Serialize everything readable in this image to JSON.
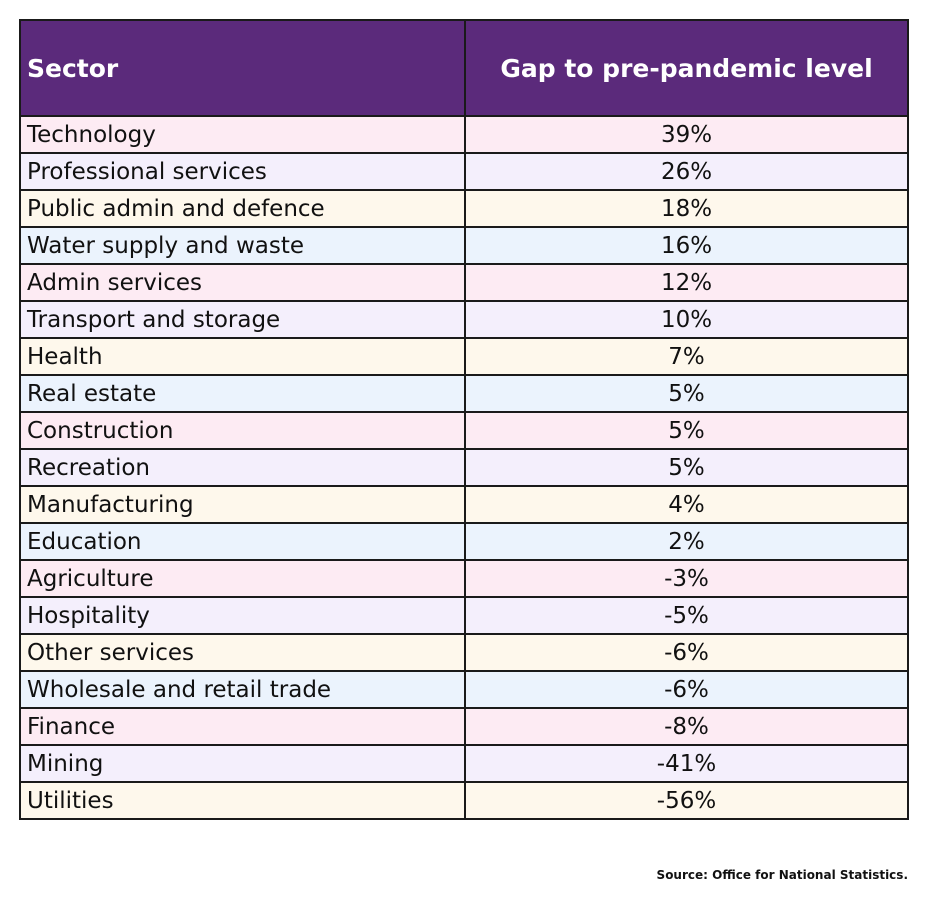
{
  "chart_data": {
    "type": "table",
    "columns": [
      "Sector",
      "Gap to pre-pandemic level"
    ],
    "rows": [
      [
        "Technology",
        "39%"
      ],
      [
        "Professional services",
        "26%"
      ],
      [
        "Public admin and defence",
        "18%"
      ],
      [
        "Water supply and waste",
        "16%"
      ],
      [
        "Admin services",
        "12%"
      ],
      [
        "Transport and storage",
        "10%"
      ],
      [
        "Health",
        "7%"
      ],
      [
        "Real estate",
        "5%"
      ],
      [
        "Construction",
        "5%"
      ],
      [
        "Recreation",
        "5%"
      ],
      [
        "Manufacturing",
        "4%"
      ],
      [
        "Education",
        "2%"
      ],
      [
        "Agriculture",
        "-3%"
      ],
      [
        "Hospitality",
        "-5%"
      ],
      [
        "Other services",
        "-6%"
      ],
      [
        "Wholesale and retail trade",
        "-6%"
      ],
      [
        "Finance",
        "-8%"
      ],
      [
        "Mining",
        "-41%"
      ],
      [
        "Utilities",
        "-56%"
      ]
    ],
    "header_color": "#5b2a7b",
    "row_colors": [
      "#fdebf3",
      "#f4effc",
      "#fef8ec",
      "#ebf3fd"
    ]
  },
  "source": "Source: Office for National Statistics."
}
